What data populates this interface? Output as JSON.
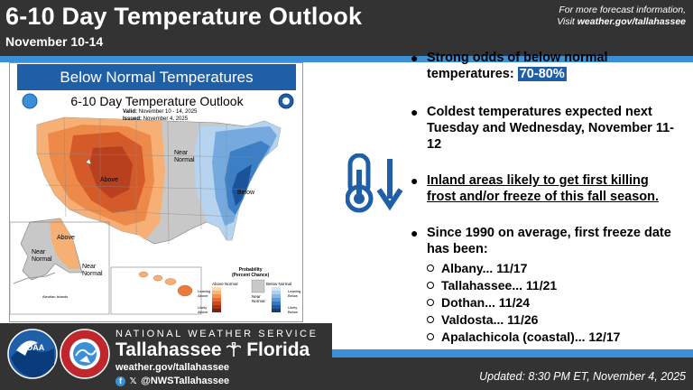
{
  "header": {
    "title": "6-10 Day Temperature Outlook",
    "subtitle": "November 10-14",
    "more_info_line1": "For more forecast information,",
    "more_info_prefix": "Visit ",
    "more_info_url": "weather.gov/tallahassee"
  },
  "map": {
    "banner": "Below Normal Temperatures",
    "title": "6-10 Day Temperature Outlook",
    "valid_label": "Valid:",
    "valid_value": "November 10 - 14, 2025",
    "issued_label": "Issued:",
    "issued_value": "November 4, 2025",
    "region_labels": {
      "above": "Above",
      "near_normal": "Near\nNormal",
      "below": "Below",
      "alaska_above": "Above",
      "alaska_near_normal": "Near\nNormal",
      "hawaii_near_normal": "Near\nNormal",
      "aleutian": "Aleutian Islands"
    },
    "legend": {
      "heading": "Probability\n(Percent Chance)",
      "above_label": "Above Normal",
      "near_label": "Near\nNormal",
      "below_label": "Below Normal",
      "leaning_above": "Leaning\nAbove",
      "likely_above": "Likely\nAbove",
      "leaning_below": "Leaning\nBelow",
      "likely_below": "Likely\nBelow",
      "above_colors": [
        "#fcd9b0",
        "#f8b57a",
        "#f29050",
        "#e46c34",
        "#cc4a22",
        "#a83418",
        "#7c2310"
      ],
      "below_colors": [
        "#d4e5f6",
        "#b0d0ef",
        "#86b6e4",
        "#5a98d6",
        "#3579c0",
        "#1d5aa3",
        "#123d7a"
      ]
    }
  },
  "bullets": [
    {
      "text": "Strong odds of below normal temperatures: ",
      "highlight": "70-80%"
    },
    {
      "text": "Coldest temperatures expected next Tuesday and Wednesday, November 11-12"
    },
    {
      "text": "Inland areas likely to get first killing frost and/or freeze of this fall season."
    },
    {
      "text": "Since 1990 on average, first freeze date has been:"
    }
  ],
  "freeze_dates": [
    "Albany... 11/17",
    "Tallahassee... 11/21",
    "Dothan... 11/24",
    "Valdosta... 11/26",
    "Apalachicola (coastal)... 12/17"
  ],
  "icons": [
    "thermometer-down-icon",
    "noaa-logo",
    "nws-logo",
    "facebook-icon",
    "x-icon"
  ],
  "footer": {
    "agency": "NATIONAL WEATHER SERVICE",
    "office": "Tallahassee",
    "state": "Florida",
    "url": "weather.gov/tallahassee",
    "handle": "@NWSTallahassee",
    "updated": "Updated: 8:30 PM ET, November 4, 2025",
    "noaa_logo_text": "NOAA",
    "nws_logo_text": "NATIONAL WEATHER SERVICE"
  },
  "colors": {
    "header_bg": "#333333",
    "accent_blue": "#3b8fd6",
    "banner_blue": "#1f5fa8",
    "icon_blue": "#1f5fa8"
  }
}
